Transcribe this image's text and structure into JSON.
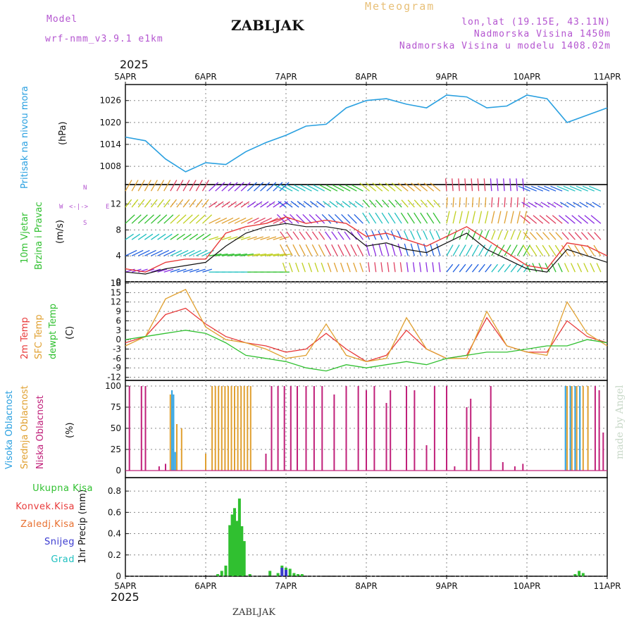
{
  "header": {
    "model_label": "Model",
    "model_name": "wrf-nmm_v3.9.1 e1km",
    "station": "ZABLJAK",
    "product": "Meteogram",
    "coords": "lon,lat (19.15E, 43.11N)",
    "altitude": "Nadmorska Visina 1450m",
    "model_altitude": "Nadmorska Visina u modelu 1408.02m",
    "year_top": "2025",
    "year_bottom": "2025",
    "footer_station": "ZABLJAK",
    "credit": "made by Angel"
  },
  "colors": {
    "pressure": "#2aa0e0",
    "temp2m": "#e83a3a",
    "sfc": "#e0a030",
    "dewpt": "#30c030",
    "high_cloud": "#2aa0e0",
    "mid_cloud": "#e0a030",
    "low_cloud": "#c0207a",
    "precip_total": "#30c030",
    "precip_conv": "#e83a3a",
    "precip_frozen": "#e87030",
    "snow": "#3a3ad0",
    "hail": "#20c0c0",
    "wind_speed": "#111111",
    "gust": "#e83a3a"
  },
  "chart_data": [
    {
      "type": "line",
      "panel": "pressure",
      "ylabel": "(hPa)",
      "side_label": "Pritisak na nivou mora",
      "x_ticks": [
        "5APR",
        "6APR",
        "7APR",
        "8APR",
        "9APR",
        "10APR",
        "11APR"
      ],
      "ylim": [
        1003,
        1030
      ],
      "y_ticks": [
        1008,
        1014,
        1020,
        1026
      ],
      "grid": true,
      "x": [
        0,
        0.25,
        0.5,
        0.75,
        1,
        1.25,
        1.5,
        1.75,
        2,
        2.25,
        2.5,
        2.75,
        3,
        3.25,
        3.5,
        3.75,
        4,
        4.25,
        4.5,
        4.75,
        5,
        5.25,
        5.5,
        5.75,
        6
      ],
      "values": [
        1016,
        1015,
        1010,
        1006.5,
        1009,
        1008.5,
        1012,
        1014.5,
        1016.5,
        1019,
        1019.5,
        1024,
        1026,
        1026.5,
        1025,
        1024,
        1027.5,
        1027,
        1024,
        1024.5,
        1027.5,
        1026.5,
        1020,
        1022,
        1024
      ]
    },
    {
      "type": "line",
      "panel": "wind",
      "ylabel": "(m/s)",
      "side_label_1": "10m Vjetar",
      "side_label_2": "Brzina i Pravac",
      "compass_n": "N",
      "compass_s": "S",
      "compass_w": "W",
      "compass_e": "E",
      "ylim": [
        0,
        15
      ],
      "y_ticks": [
        0,
        4,
        8,
        12
      ],
      "grid": true,
      "x": [
        0,
        0.25,
        0.5,
        0.75,
        1,
        1.25,
        1.5,
        1.75,
        2,
        2.25,
        2.5,
        2.75,
        3,
        3.25,
        3.5,
        3.75,
        4,
        4.25,
        4.5,
        4.75,
        5,
        5.25,
        5.5,
        5.75,
        6
      ],
      "series": [
        {
          "name": "speed",
          "values": [
            1.5,
            1.2,
            2.0,
            2.5,
            3.0,
            5.5,
            7.5,
            8.5,
            9.0,
            8.5,
            8.5,
            8.0,
            5.5,
            6.0,
            5.0,
            4.5,
            6.0,
            7.5,
            5.0,
            3.5,
            2.0,
            1.5,
            5.0,
            4.0,
            3.0
          ]
        },
        {
          "name": "gust",
          "values": [
            2.0,
            1.5,
            3.0,
            3.5,
            3.5,
            7.5,
            8.5,
            9.0,
            10.0,
            9.0,
            9.5,
            9.0,
            7.0,
            7.5,
            6.5,
            5.5,
            7.0,
            8.5,
            6.5,
            4.5,
            2.5,
            2.0,
            6.0,
            5.5,
            4.0
          ]
        }
      ]
    },
    {
      "type": "line",
      "panel": "temperature",
      "ylabel": "(C)",
      "side_label_1": "2m Temp",
      "side_label_2": "SFC Temp",
      "side_label_3": "dewpt Temp",
      "ylim": [
        -13,
        18
      ],
      "y_ticks": [
        -12,
        -9,
        -6,
        -3,
        0,
        3,
        6,
        9,
        12,
        15,
        18
      ],
      "grid": true,
      "x": [
        0,
        0.25,
        0.5,
        0.75,
        1,
        1.25,
        1.5,
        1.75,
        2,
        2.25,
        2.5,
        2.75,
        3,
        3.25,
        3.5,
        3.75,
        4,
        4.25,
        4.5,
        4.75,
        5,
        5.25,
        5.5,
        5.75,
        6
      ],
      "series": [
        {
          "name": "2m Temp",
          "values": [
            -1,
            1,
            8,
            10,
            5,
            1,
            -1,
            -2,
            -4,
            -3,
            2,
            -3,
            -7,
            -5,
            3,
            -3,
            -6,
            -5,
            7,
            -2,
            -4,
            -4,
            6,
            1,
            -1
          ]
        },
        {
          "name": "SFC Temp",
          "values": [
            -2,
            1,
            13,
            16,
            4,
            0,
            -1,
            -3,
            -6,
            -5,
            5,
            -5,
            -7,
            -6,
            7,
            -3,
            -6,
            -6,
            9,
            -2,
            -4,
            -5,
            12,
            2,
            -2
          ]
        },
        {
          "name": "dewpt Temp",
          "values": [
            0,
            1,
            2,
            3,
            2,
            -1,
            -5,
            -6,
            -7,
            -9,
            -10,
            -8,
            -9,
            -8,
            -7,
            -8,
            -6,
            -5,
            -4,
            -4,
            -3,
            -2,
            -2,
            0,
            -1
          ]
        }
      ]
    },
    {
      "type": "bar",
      "panel": "clouds",
      "ylabel": "(%)",
      "side_label_1": "Visoka Oblacnost",
      "side_label_2": "Srednja Oblacnost",
      "side_label_3": "Niska Oblacnost",
      "ylim": [
        0,
        100
      ],
      "y_ticks": [
        0,
        25,
        50,
        75,
        100
      ],
      "grid": true,
      "series": [
        {
          "name": "Visoka Oblacnost",
          "x": [
            0.58,
            0.6,
            0.62,
            5.48,
            5.5,
            5.54,
            5.6,
            5.66
          ],
          "values": [
            95,
            90,
            22,
            100,
            100,
            100,
            100,
            100
          ]
        },
        {
          "name": "Srednja Oblacnost",
          "x": [
            0.56,
            0.64,
            0.7,
            1.0,
            1.08,
            1.12,
            1.16,
            1.2,
            1.24,
            1.28,
            1.32,
            1.36,
            1.4,
            1.44,
            1.48,
            1.52,
            1.56,
            5.5,
            5.56,
            5.62,
            5.7,
            5.76
          ],
          "values": [
            90,
            55,
            50,
            20,
            100,
            100,
            100,
            100,
            100,
            100,
            100,
            100,
            100,
            100,
            100,
            100,
            100,
            100,
            100,
            100,
            100,
            100
          ]
        },
        {
          "name": "Niska Oblacnost",
          "x": [
            0.05,
            0.2,
            0.25,
            0.42,
            0.5,
            1.75,
            1.82,
            1.9,
            1.98,
            2.06,
            2.14,
            2.25,
            2.35,
            2.45,
            2.6,
            2.75,
            2.9,
            3.0,
            3.1,
            3.25,
            3.3,
            3.5,
            3.6,
            3.75,
            3.85,
            4.0,
            4.1,
            4.25,
            4.3,
            4.4,
            4.55,
            4.7,
            4.85,
            4.95,
            5.85,
            5.9,
            5.95
          ],
          "values": [
            100,
            100,
            100,
            5,
            8,
            20,
            100,
            100,
            100,
            100,
            100,
            100,
            100,
            100,
            90,
            100,
            100,
            95,
            100,
            80,
            95,
            100,
            95,
            30,
            100,
            100,
            5,
            75,
            85,
            40,
            100,
            10,
            5,
            8,
            100,
            95,
            45
          ]
        }
      ]
    },
    {
      "type": "bar",
      "panel": "precipitation",
      "ylabel": "1hr Precip (mm)",
      "legend": [
        "Ukupna Kisa",
        "Konvek.Kisa",
        "Zaledj.Kisa",
        "Snijeg",
        "Grad"
      ],
      "ylim": [
        0,
        0.9
      ],
      "y_ticks": [
        0,
        0.2,
        0.4,
        0.6,
        0.8
      ],
      "grid": true,
      "series": [
        {
          "name": "Ukupna Kisa",
          "x": [
            1.15,
            1.2,
            1.25,
            1.3,
            1.33,
            1.36,
            1.39,
            1.42,
            1.45,
            1.48,
            1.55,
            1.8,
            1.9,
            1.95,
            2.0,
            2.05,
            2.1,
            2.15,
            2.2,
            5.6,
            5.65,
            5.7
          ],
          "values": [
            0.02,
            0.05,
            0.1,
            0.48,
            0.58,
            0.64,
            0.52,
            0.73,
            0.47,
            0.33,
            0.02,
            0.05,
            0.03,
            0.1,
            0.08,
            0.07,
            0.03,
            0.02,
            0.02,
            0.02,
            0.05,
            0.03
          ]
        },
        {
          "name": "Snijeg",
          "x": [
            1.95,
            2.0
          ],
          "values": [
            0.08,
            0.06
          ]
        }
      ]
    }
  ]
}
